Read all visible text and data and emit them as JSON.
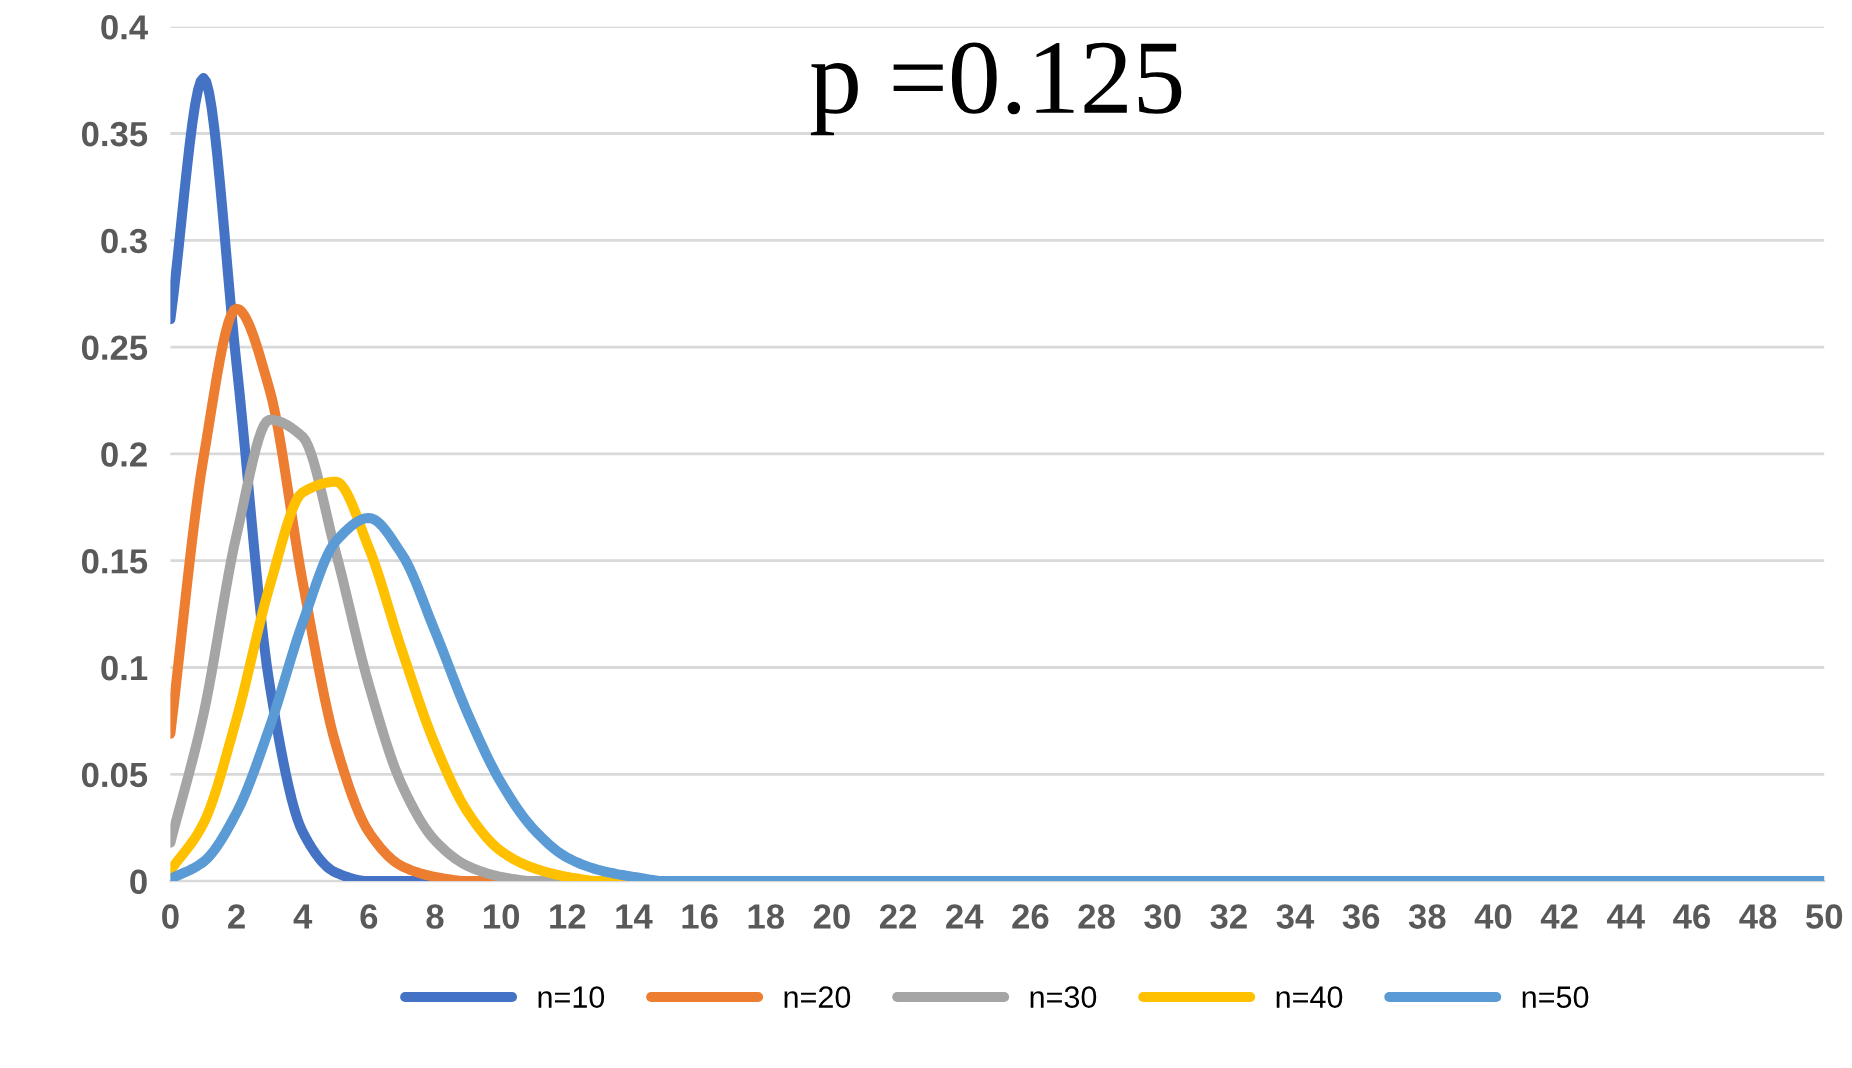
{
  "chart_data": {
    "type": "line",
    "title": "p =0.125",
    "x": [
      0,
      1,
      2,
      3,
      4,
      5,
      6,
      7,
      8,
      9,
      10,
      11,
      12,
      13,
      14,
      15,
      16,
      17,
      18,
      19,
      20,
      21,
      22,
      23,
      24,
      25,
      26,
      27,
      28,
      29,
      30,
      31,
      32,
      33,
      34,
      35,
      36,
      37,
      38,
      39,
      40,
      41,
      42,
      43,
      44,
      45,
      46,
      47,
      48,
      49,
      50
    ],
    "series": [
      {
        "name": "n=10",
        "color": "#4472c4",
        "values": [
          0.263,
          0.376,
          0.242,
          0.092,
          0.023,
          0.004,
          0,
          0,
          0,
          null,
          null,
          null,
          null,
          null,
          null,
          null,
          null,
          null,
          null,
          null,
          null,
          null,
          null,
          null,
          null,
          null,
          null,
          null,
          null,
          null,
          null,
          null,
          null,
          null,
          null,
          null,
          null,
          null,
          null,
          null,
          null,
          null,
          null,
          null,
          null,
          null,
          null,
          null,
          null,
          null,
          null
        ]
      },
      {
        "name": "n=20",
        "color": "#ed7d31",
        "values": [
          0.069,
          0.198,
          0.268,
          0.23,
          0.14,
          0.064,
          0.023,
          0.007,
          0.002,
          0,
          0,
          null,
          null,
          null,
          null,
          null,
          null,
          null,
          null,
          null,
          null,
          null,
          null,
          null,
          null,
          null,
          null,
          null,
          null,
          null,
          null,
          null,
          null,
          null,
          null,
          null,
          null,
          null,
          null,
          null,
          null,
          null,
          null,
          null,
          null,
          null,
          null,
          null,
          null,
          null,
          null
        ]
      },
      {
        "name": "n=30",
        "color": "#a5a5a5",
        "values": [
          0.018,
          0.078,
          0.162,
          0.216,
          0.208,
          0.154,
          0.092,
          0.045,
          0.019,
          0.007,
          0.002,
          0,
          0,
          null,
          null,
          null,
          null,
          null,
          null,
          null,
          null,
          null,
          null,
          null,
          null,
          null,
          null,
          null,
          null,
          null,
          null,
          null,
          null,
          null,
          null,
          null,
          null,
          null,
          null,
          null,
          null,
          null,
          null,
          null,
          null,
          null,
          null,
          null,
          null,
          null,
          null
        ]
      },
      {
        "name": "n=40",
        "color": "#ffc000",
        "values": [
          0.005,
          0.027,
          0.076,
          0.138,
          0.182,
          0.187,
          0.156,
          0.108,
          0.064,
          0.032,
          0.014,
          0.006,
          0.002,
          0,
          0,
          null,
          null,
          null,
          null,
          null,
          null,
          null,
          null,
          null,
          null,
          null,
          null,
          null,
          null,
          null,
          null,
          null,
          null,
          null,
          null,
          null,
          null,
          null,
          null,
          null,
          null,
          null,
          null,
          null,
          null,
          null,
          null,
          null,
          null,
          null,
          null
        ]
      },
      {
        "name": "n=50",
        "color": "#5b9bd5",
        "values": [
          0.001,
          0.009,
          0.032,
          0.072,
          0.121,
          0.159,
          0.17,
          0.153,
          0.117,
          0.078,
          0.046,
          0.024,
          0.011,
          0.005,
          0.002,
          0,
          0,
          0,
          0,
          0,
          0,
          0,
          0,
          0,
          0,
          0,
          0,
          0,
          0,
          0,
          0,
          0,
          0,
          0,
          0,
          0,
          0,
          0,
          0,
          0,
          0,
          0,
          0,
          0,
          0,
          0,
          0,
          0,
          0,
          0,
          0
        ]
      }
    ],
    "xlim": [
      0,
      50
    ],
    "xticks": [
      0,
      2,
      4,
      6,
      8,
      10,
      12,
      14,
      16,
      18,
      20,
      22,
      24,
      26,
      28,
      30,
      32,
      34,
      36,
      38,
      40,
      42,
      44,
      46,
      48,
      50
    ],
    "ylim": [
      0,
      0.4
    ],
    "yticks": [
      0,
      0.05,
      0.1,
      0.15,
      0.2,
      0.25,
      0.3,
      0.35,
      0.4
    ],
    "grid": "y",
    "legend": "bottom",
    "marker": "none",
    "line_style": "solid"
  }
}
